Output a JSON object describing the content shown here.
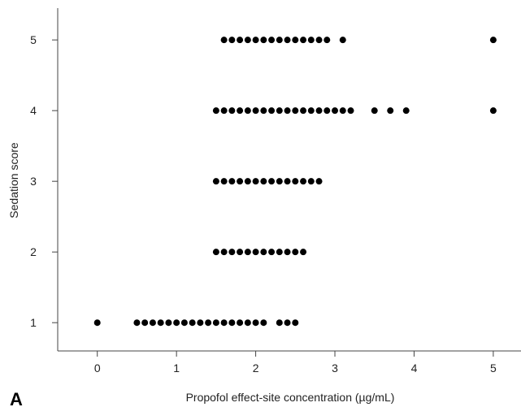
{
  "panel_label": "A",
  "chart_data": {
    "type": "scatter",
    "title": "",
    "xlabel": "Propofol effect-site concentration (µg/mL)",
    "ylabel": "Sedation score",
    "xlim": [
      -0.5,
      5.35
    ],
    "ylim": [
      0.6,
      5.45
    ],
    "xticks": [
      0,
      1,
      2,
      3,
      4,
      5
    ],
    "yticks": [
      1,
      2,
      3,
      4,
      5
    ],
    "grid": false,
    "marker_color": "#000000",
    "points": [
      {
        "x": 0.0,
        "y": 1
      },
      {
        "x": 0.5,
        "y": 1
      },
      {
        "x": 0.6,
        "y": 1
      },
      {
        "x": 0.7,
        "y": 1
      },
      {
        "x": 0.8,
        "y": 1
      },
      {
        "x": 0.9,
        "y": 1
      },
      {
        "x": 1.0,
        "y": 1
      },
      {
        "x": 1.1,
        "y": 1
      },
      {
        "x": 1.2,
        "y": 1
      },
      {
        "x": 1.3,
        "y": 1
      },
      {
        "x": 1.4,
        "y": 1
      },
      {
        "x": 1.5,
        "y": 1
      },
      {
        "x": 1.6,
        "y": 1
      },
      {
        "x": 1.7,
        "y": 1
      },
      {
        "x": 1.8,
        "y": 1
      },
      {
        "x": 1.9,
        "y": 1
      },
      {
        "x": 2.0,
        "y": 1
      },
      {
        "x": 2.1,
        "y": 1
      },
      {
        "x": 2.3,
        "y": 1
      },
      {
        "x": 2.4,
        "y": 1
      },
      {
        "x": 2.5,
        "y": 1
      },
      {
        "x": 1.5,
        "y": 2
      },
      {
        "x": 1.6,
        "y": 2
      },
      {
        "x": 1.7,
        "y": 2
      },
      {
        "x": 1.8,
        "y": 2
      },
      {
        "x": 1.9,
        "y": 2
      },
      {
        "x": 2.0,
        "y": 2
      },
      {
        "x": 2.1,
        "y": 2
      },
      {
        "x": 2.2,
        "y": 2
      },
      {
        "x": 2.3,
        "y": 2
      },
      {
        "x": 2.4,
        "y": 2
      },
      {
        "x": 2.5,
        "y": 2
      },
      {
        "x": 2.6,
        "y": 2
      },
      {
        "x": 1.5,
        "y": 3
      },
      {
        "x": 1.6,
        "y": 3
      },
      {
        "x": 1.7,
        "y": 3
      },
      {
        "x": 1.8,
        "y": 3
      },
      {
        "x": 1.9,
        "y": 3
      },
      {
        "x": 2.0,
        "y": 3
      },
      {
        "x": 2.1,
        "y": 3
      },
      {
        "x": 2.2,
        "y": 3
      },
      {
        "x": 2.3,
        "y": 3
      },
      {
        "x": 2.4,
        "y": 3
      },
      {
        "x": 2.5,
        "y": 3
      },
      {
        "x": 2.6,
        "y": 3
      },
      {
        "x": 2.7,
        "y": 3
      },
      {
        "x": 2.8,
        "y": 3
      },
      {
        "x": 1.5,
        "y": 4
      },
      {
        "x": 1.6,
        "y": 4
      },
      {
        "x": 1.7,
        "y": 4
      },
      {
        "x": 1.8,
        "y": 4
      },
      {
        "x": 1.9,
        "y": 4
      },
      {
        "x": 2.0,
        "y": 4
      },
      {
        "x": 2.1,
        "y": 4
      },
      {
        "x": 2.2,
        "y": 4
      },
      {
        "x": 2.3,
        "y": 4
      },
      {
        "x": 2.4,
        "y": 4
      },
      {
        "x": 2.5,
        "y": 4
      },
      {
        "x": 2.6,
        "y": 4
      },
      {
        "x": 2.7,
        "y": 4
      },
      {
        "x": 2.8,
        "y": 4
      },
      {
        "x": 2.9,
        "y": 4
      },
      {
        "x": 3.0,
        "y": 4
      },
      {
        "x": 3.1,
        "y": 4
      },
      {
        "x": 3.2,
        "y": 4
      },
      {
        "x": 3.5,
        "y": 4
      },
      {
        "x": 3.7,
        "y": 4
      },
      {
        "x": 3.9,
        "y": 4
      },
      {
        "x": 5.0,
        "y": 4
      },
      {
        "x": 1.6,
        "y": 5
      },
      {
        "x": 1.7,
        "y": 5
      },
      {
        "x": 1.8,
        "y": 5
      },
      {
        "x": 1.9,
        "y": 5
      },
      {
        "x": 2.0,
        "y": 5
      },
      {
        "x": 2.1,
        "y": 5
      },
      {
        "x": 2.2,
        "y": 5
      },
      {
        "x": 2.3,
        "y": 5
      },
      {
        "x": 2.4,
        "y": 5
      },
      {
        "x": 2.5,
        "y": 5
      },
      {
        "x": 2.6,
        "y": 5
      },
      {
        "x": 2.7,
        "y": 5
      },
      {
        "x": 2.8,
        "y": 5
      },
      {
        "x": 2.9,
        "y": 5
      },
      {
        "x": 3.1,
        "y": 5
      },
      {
        "x": 5.0,
        "y": 5
      }
    ]
  }
}
